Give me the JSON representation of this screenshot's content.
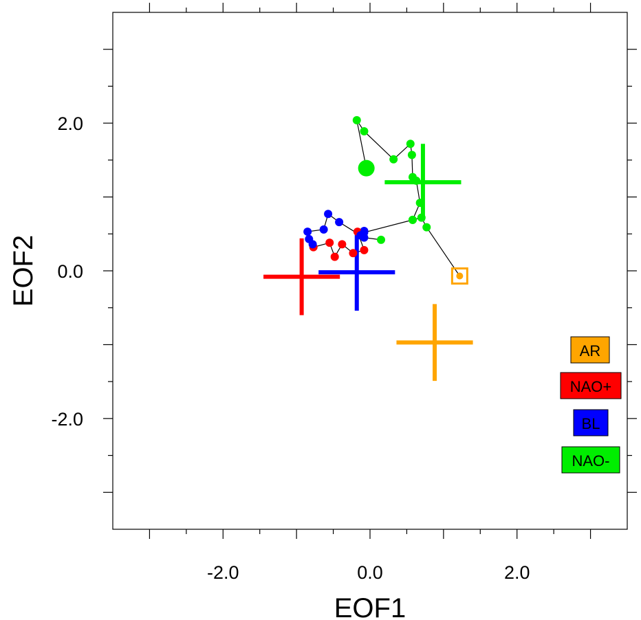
{
  "chart_data": {
    "type": "scatter",
    "xlabel": "EOF1",
    "ylabel": "EOF2",
    "xlim": [
      -3.5,
      3.5
    ],
    "ylim": [
      -3.5,
      3.5
    ],
    "x_tick_labels": [
      {
        "value": -2.0,
        "label": "-2.0"
      },
      {
        "value": 0.0,
        "label": "0.0"
      },
      {
        "value": 2.0,
        "label": "2.0"
      }
    ],
    "y_tick_labels": [
      {
        "value": 2.0,
        "label": "2.0"
      },
      {
        "value": 0.0,
        "label": "0.0"
      },
      {
        "value": -2.0,
        "label": "-2.0"
      }
    ],
    "major_ticks": [
      -3.0,
      -2.0,
      -1.0,
      0.0,
      1.0,
      2.0,
      3.0
    ],
    "minor_ticks": [
      -2.5,
      -1.5,
      -0.5,
      0.5,
      1.5,
      2.5
    ],
    "grid": false,
    "legend_position": "bottom-right",
    "legend": [
      {
        "label": "AR",
        "color": "#ffa500"
      },
      {
        "label": "NAO+",
        "color": "#ff0000"
      },
      {
        "label": "BL",
        "color": "#0000ff"
      },
      {
        "label": "NAO-",
        "color": "#00ee00"
      }
    ],
    "centroids": [
      {
        "regime": "AR",
        "x": 0.88,
        "y": -0.97,
        "half_width": 0.52,
        "half_height": 0.52,
        "color": "#ffa500"
      },
      {
        "regime": "NAO+",
        "x": -0.93,
        "y": -0.08,
        "half_width": 0.52,
        "half_height": 0.52,
        "color": "#ff0000"
      },
      {
        "regime": "BL",
        "x": -0.18,
        "y": -0.02,
        "half_width": 0.52,
        "half_height": 0.52,
        "color": "#0000ff"
      },
      {
        "regime": "NAO-",
        "x": 0.72,
        "y": 1.2,
        "half_width": 0.52,
        "half_height": 0.52,
        "color": "#00ee00"
      }
    ],
    "trajectory": {
      "line_color": "#000000",
      "start": {
        "x": 1.22,
        "y": -0.07,
        "color": "#ffa500",
        "marker": "square"
      },
      "end": {
        "x": -0.05,
        "y": 1.39,
        "color": "#00ee00",
        "marker": "large-circle"
      },
      "points": [
        {
          "x": 1.22,
          "y": -0.07,
          "color": "#ffa500"
        },
        {
          "x": 0.77,
          "y": 0.59,
          "color": "#00ee00"
        },
        {
          "x": 0.7,
          "y": 0.72,
          "color": "#00ee00"
        },
        {
          "x": 0.58,
          "y": 0.69,
          "color": "#00ee00"
        },
        {
          "x": 0.68,
          "y": 0.92,
          "color": "#00ee00"
        },
        {
          "x": 0.63,
          "y": 1.22,
          "color": "#00ee00"
        },
        {
          "x": 0.58,
          "y": 1.27,
          "color": "#00ee00"
        },
        {
          "x": 0.57,
          "y": 1.57,
          "color": "#00ee00"
        },
        {
          "x": 0.55,
          "y": 1.72,
          "color": "#00ee00"
        },
        {
          "x": 0.32,
          "y": 1.51,
          "color": "#00ee00"
        },
        {
          "x": -0.08,
          "y": 1.89,
          "color": "#00ee00"
        },
        {
          "x": -0.18,
          "y": 2.04,
          "color": "#00ee00"
        },
        {
          "x": -0.05,
          "y": 1.39,
          "color": "#00ee00"
        }
      ],
      "path_before": [
        {
          "x": 0.15,
          "y": 0.42,
          "color": "#00ee00"
        },
        {
          "x": -0.08,
          "y": 0.45,
          "color": "#0000ff"
        },
        {
          "x": -0.08,
          "y": 0.54,
          "color": "#0000ff"
        },
        {
          "x": -0.17,
          "y": 0.53,
          "color": "#ff0000"
        },
        {
          "x": -0.08,
          "y": 0.28,
          "color": "#ff0000"
        },
        {
          "x": -0.23,
          "y": 0.24,
          "color": "#ff0000"
        },
        {
          "x": -0.38,
          "y": 0.36,
          "color": "#ff0000"
        },
        {
          "x": -0.48,
          "y": 0.19,
          "color": "#ff0000"
        },
        {
          "x": -0.55,
          "y": 0.38,
          "color": "#ff0000"
        },
        {
          "x": -0.77,
          "y": 0.32,
          "color": "#ff0000"
        },
        {
          "x": -0.78,
          "y": 0.36,
          "color": "#0000ff"
        },
        {
          "x": -0.83,
          "y": 0.43,
          "color": "#0000ff"
        },
        {
          "x": -0.85,
          "y": 0.53,
          "color": "#0000ff"
        },
        {
          "x": -0.63,
          "y": 0.56,
          "color": "#0000ff"
        },
        {
          "x": -0.57,
          "y": 0.77,
          "color": "#0000ff"
        },
        {
          "x": -0.42,
          "y": 0.66,
          "color": "#0000ff"
        },
        {
          "x": -0.13,
          "y": 0.48,
          "color": "#0000ff"
        },
        {
          "x": -0.08,
          "y": 0.52,
          "color": "#0000ff"
        },
        {
          "x": 0.58,
          "y": 0.69,
          "color": "#00ee00"
        }
      ]
    }
  }
}
